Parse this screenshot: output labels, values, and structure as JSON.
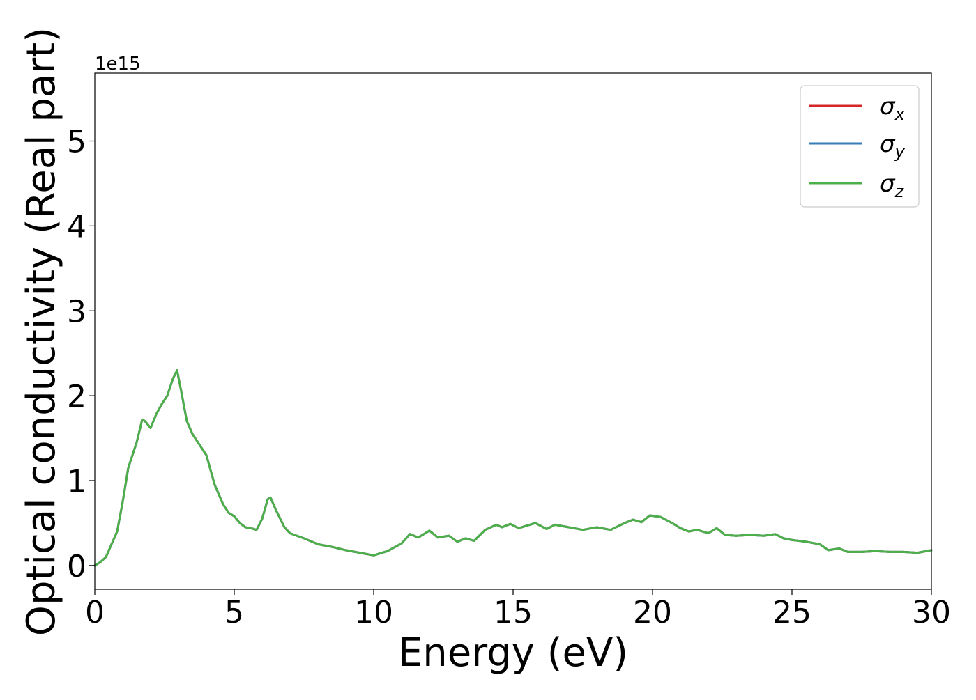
{
  "chart_data": {
    "type": "line",
    "title": "",
    "xlabel": "Energy (eV)",
    "ylabel": "Optical conductivity (Real part)",
    "y_offset_label": "1e15",
    "xlim": [
      0,
      30
    ],
    "ylim": [
      -0.28,
      5.8
    ],
    "y_scale_factor": 1000000000000000.0,
    "grid": false,
    "legend_position": "top-right",
    "xticks": [
      0,
      5,
      10,
      15,
      20,
      25,
      30
    ],
    "xtick_labels": [
      "0",
      "5",
      "10",
      "15",
      "20",
      "25",
      "30"
    ],
    "yticks": [
      0,
      1,
      2,
      3,
      4,
      5
    ],
    "ytick_labels": [
      "0",
      "1",
      "2",
      "3",
      "4",
      "5"
    ],
    "x": [
      0.0,
      0.2,
      0.4,
      0.6,
      0.8,
      1.0,
      1.2,
      1.5,
      1.7,
      1.8,
      2.0,
      2.2,
      2.4,
      2.6,
      2.8,
      2.95,
      3.1,
      3.3,
      3.5,
      3.7,
      4.0,
      4.3,
      4.6,
      4.8,
      5.0,
      5.2,
      5.4,
      5.6,
      5.8,
      6.0,
      6.2,
      6.3,
      6.5,
      6.8,
      7.0,
      7.5,
      8.0,
      8.5,
      9.0,
      9.5,
      10.0,
      10.5,
      11.0,
      11.3,
      11.6,
      12.0,
      12.3,
      12.7,
      13.0,
      13.3,
      13.6,
      14.0,
      14.4,
      14.6,
      14.9,
      15.2,
      15.5,
      15.8,
      16.2,
      16.5,
      17.0,
      17.5,
      18.0,
      18.5,
      19.0,
      19.3,
      19.6,
      19.9,
      20.3,
      20.7,
      21.0,
      21.3,
      21.6,
      22.0,
      22.3,
      22.6,
      23.0,
      23.5,
      24.0,
      24.4,
      24.7,
      25.0,
      25.5,
      26.0,
      26.3,
      26.7,
      27.0,
      27.5,
      28.0,
      28.5,
      29.0,
      29.5,
      30.0
    ],
    "series": [
      {
        "name": "σx",
        "color": "#d62728",
        "values": [
          0.0,
          0.04,
          0.1,
          0.25,
          0.4,
          0.75,
          1.15,
          1.45,
          1.72,
          1.7,
          1.62,
          1.78,
          1.9,
          2.0,
          2.2,
          2.3,
          2.05,
          1.7,
          1.55,
          1.45,
          1.3,
          0.95,
          0.72,
          0.62,
          0.58,
          0.5,
          0.45,
          0.44,
          0.42,
          0.55,
          0.78,
          0.8,
          0.65,
          0.45,
          0.38,
          0.32,
          0.25,
          0.22,
          0.18,
          0.15,
          0.12,
          0.17,
          0.26,
          0.37,
          0.33,
          0.41,
          0.33,
          0.35,
          0.28,
          0.32,
          0.29,
          0.42,
          0.48,
          0.45,
          0.49,
          0.44,
          0.47,
          0.5,
          0.43,
          0.48,
          0.45,
          0.42,
          0.45,
          0.42,
          0.5,
          0.54,
          0.51,
          0.59,
          0.57,
          0.5,
          0.44,
          0.4,
          0.42,
          0.38,
          0.44,
          0.36,
          0.35,
          0.36,
          0.35,
          0.37,
          0.32,
          0.3,
          0.28,
          0.25,
          0.18,
          0.2,
          0.16,
          0.16,
          0.17,
          0.16,
          0.16,
          0.15,
          0.18
        ]
      },
      {
        "name": "σy",
        "color": "#377eb8",
        "values": [
          0.0,
          0.04,
          0.1,
          0.25,
          0.4,
          0.75,
          1.15,
          1.45,
          1.72,
          1.7,
          1.62,
          1.78,
          1.9,
          2.0,
          2.2,
          2.3,
          2.05,
          1.7,
          1.55,
          1.45,
          1.3,
          0.95,
          0.72,
          0.62,
          0.58,
          0.5,
          0.45,
          0.44,
          0.42,
          0.55,
          0.78,
          0.8,
          0.65,
          0.45,
          0.38,
          0.32,
          0.25,
          0.22,
          0.18,
          0.15,
          0.12,
          0.17,
          0.26,
          0.37,
          0.33,
          0.41,
          0.33,
          0.35,
          0.28,
          0.32,
          0.29,
          0.42,
          0.48,
          0.45,
          0.49,
          0.44,
          0.47,
          0.5,
          0.43,
          0.48,
          0.45,
          0.42,
          0.45,
          0.42,
          0.5,
          0.54,
          0.51,
          0.59,
          0.57,
          0.5,
          0.44,
          0.4,
          0.42,
          0.38,
          0.44,
          0.36,
          0.35,
          0.36,
          0.35,
          0.37,
          0.32,
          0.3,
          0.28,
          0.25,
          0.18,
          0.2,
          0.16,
          0.16,
          0.17,
          0.16,
          0.16,
          0.15,
          0.18
        ]
      },
      {
        "name": "σz",
        "color": "#4daf4a",
        "values": [
          0.0,
          0.04,
          0.1,
          0.25,
          0.4,
          0.75,
          1.15,
          1.45,
          1.72,
          1.7,
          1.62,
          1.78,
          1.9,
          2.0,
          2.2,
          2.3,
          2.05,
          1.7,
          1.55,
          1.45,
          1.3,
          0.95,
          0.72,
          0.62,
          0.58,
          0.5,
          0.45,
          0.44,
          0.42,
          0.55,
          0.78,
          0.8,
          0.65,
          0.45,
          0.38,
          0.32,
          0.25,
          0.22,
          0.18,
          0.15,
          0.12,
          0.17,
          0.26,
          0.37,
          0.33,
          0.41,
          0.33,
          0.35,
          0.28,
          0.32,
          0.29,
          0.42,
          0.48,
          0.45,
          0.49,
          0.44,
          0.47,
          0.5,
          0.43,
          0.48,
          0.45,
          0.42,
          0.45,
          0.42,
          0.5,
          0.54,
          0.51,
          0.59,
          0.57,
          0.5,
          0.44,
          0.4,
          0.42,
          0.38,
          0.44,
          0.36,
          0.35,
          0.36,
          0.35,
          0.37,
          0.32,
          0.3,
          0.28,
          0.25,
          0.18,
          0.2,
          0.16,
          0.16,
          0.17,
          0.16,
          0.16,
          0.15,
          0.18
        ]
      }
    ],
    "legend": [
      {
        "symbol": "σ",
        "sub": "x",
        "color": "#d62728"
      },
      {
        "symbol": "σ",
        "sub": "y",
        "color": "#377eb8"
      },
      {
        "symbol": "σ",
        "sub": "z",
        "color": "#4daf4a"
      }
    ]
  }
}
